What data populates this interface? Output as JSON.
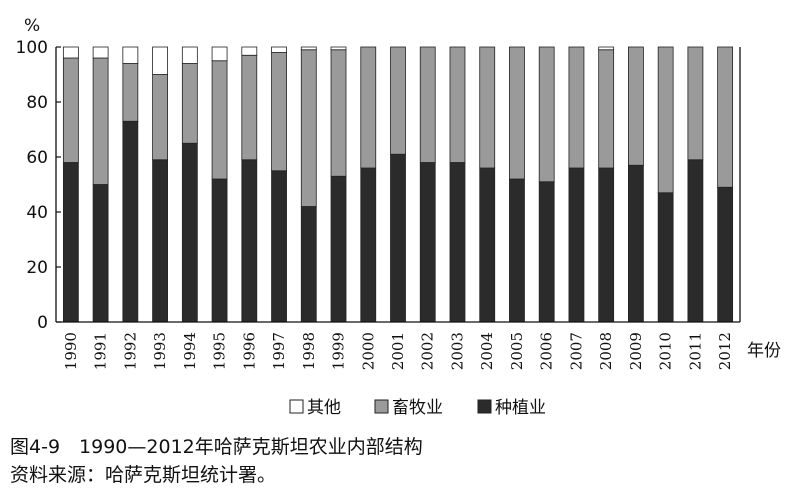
{
  "figure": {
    "caption": "图4-9　1990—2012年哈萨克斯坦农业内部结构",
    "source": "资料来源：哈萨克斯坦统计署。"
  },
  "chart_data": {
    "type": "bar",
    "stacked": true,
    "y_unit_label": "%",
    "x_unit_label": "年份",
    "ylim": [
      0,
      100
    ],
    "yticks": [
      0,
      20,
      40,
      60,
      80,
      100
    ],
    "grid": false,
    "legend_position": "bottom-center",
    "categories": [
      "1990",
      "1991",
      "1992",
      "1993",
      "1994",
      "1995",
      "1996",
      "1997",
      "1998",
      "1999",
      "2000",
      "2001",
      "2002",
      "2003",
      "2004",
      "2005",
      "2006",
      "2007",
      "2008",
      "2009",
      "2010",
      "2011",
      "2012"
    ],
    "series": [
      {
        "name": "种植业",
        "color": "#2b2b2b",
        "values": [
          58,
          50,
          73,
          59,
          65,
          52,
          59,
          55,
          42,
          53,
          56,
          61,
          58,
          58,
          56,
          52,
          51,
          56,
          56,
          57,
          47,
          59,
          49
        ]
      },
      {
        "name": "畜牧业",
        "color": "#9a9a9a",
        "values": [
          38,
          46,
          21,
          31,
          29,
          43,
          38,
          43,
          57,
          46,
          44,
          39,
          42,
          42,
          44,
          48,
          49,
          44,
          43,
          43,
          53,
          41,
          51
        ]
      },
      {
        "name": "其他",
        "color": "#ffffff",
        "values": [
          4,
          4,
          6,
          10,
          6,
          5,
          3,
          2,
          1,
          1,
          0,
          0,
          0,
          0,
          0,
          0,
          0,
          0,
          1,
          0,
          0,
          0,
          0
        ]
      }
    ],
    "legend_order": [
      "其他",
      "畜牧业",
      "种植业"
    ]
  }
}
